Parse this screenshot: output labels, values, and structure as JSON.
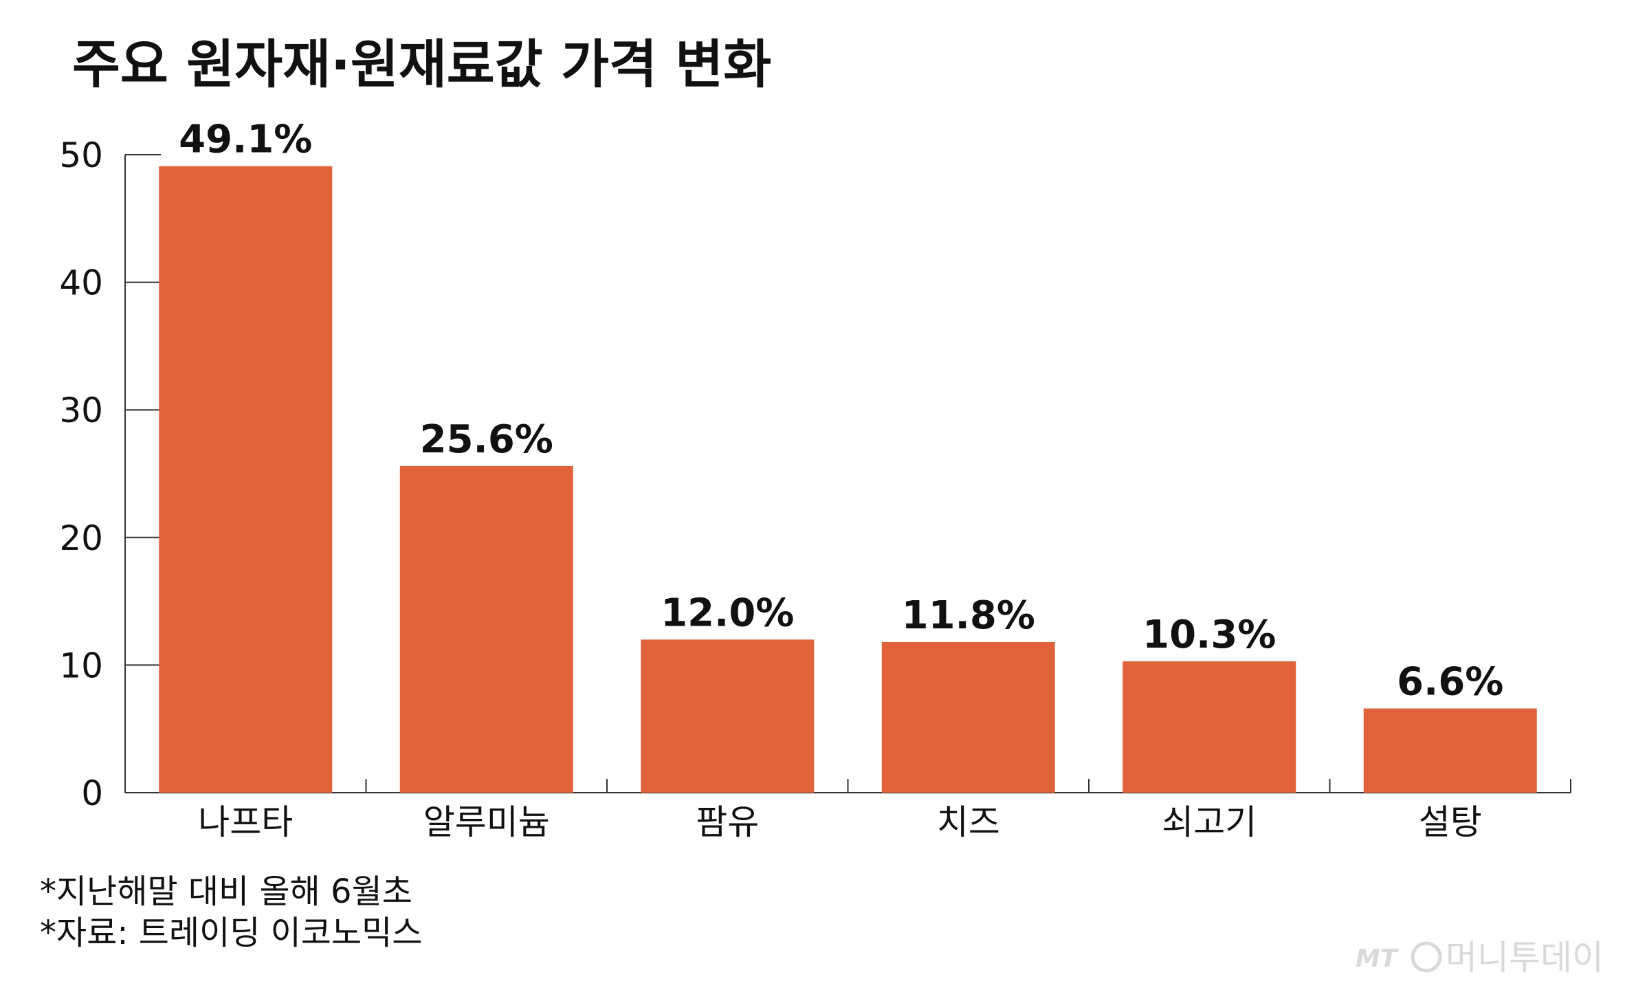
{
  "chart_data": {
    "type": "bar",
    "title": "주요 원자재·원재료값 가격 변화",
    "categories": [
      "나프타",
      "알루미늄",
      "팜유",
      "치즈",
      "쇠고기",
      "설탕"
    ],
    "values": [
      49.1,
      25.6,
      12.0,
      11.8,
      10.3,
      6.6
    ],
    "value_labels": [
      "49.1%",
      "25.6%",
      "12.0%",
      "11.8%",
      "10.3%",
      "6.6%"
    ],
    "xlabel": "",
    "ylabel": "",
    "ylim": [
      0,
      50
    ],
    "yticks": [
      0,
      10,
      20,
      30,
      40,
      50
    ],
    "grid": false,
    "bar_color": "#e0633c"
  },
  "notes": [
    "*지난해말 대비 올해 6월초",
    "*자료: 트레이딩 이코노믹스"
  ],
  "watermark": {
    "logo_text": "MT",
    "name": "머니투데이"
  }
}
